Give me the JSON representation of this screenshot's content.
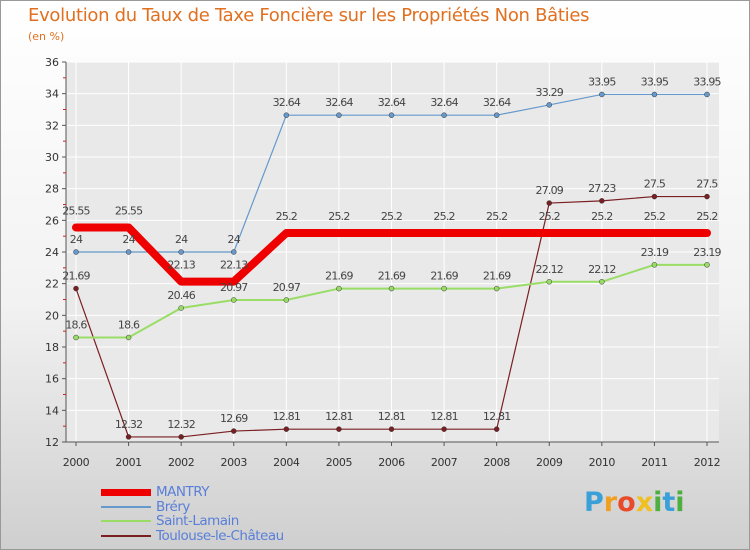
{
  "title": "Evolution du Taux de Taxe Foncière sur les Propriétés Non Bâties",
  "unit": "(en %)",
  "logo": {
    "text": "Proxiti",
    "letters": [
      "P",
      "r",
      "o",
      "x",
      "i",
      "t",
      "i"
    ]
  },
  "colors": {
    "axis": "#555555",
    "tick_text": "#333333",
    "grid": "#ffffff",
    "minor_tick": "#cc2222"
  },
  "chart_data": {
    "type": "line",
    "title": "Evolution du Taux de Taxe Foncière sur les Propriétés Non Bâties",
    "ylabel": "(en %)",
    "xlabel": "",
    "x": [
      "2000",
      "2001",
      "2002",
      "2003",
      "2004",
      "2005",
      "2006",
      "2007",
      "2008",
      "2009",
      "2010",
      "2011",
      "2012"
    ],
    "ylim": [
      12,
      36
    ],
    "yticks": [
      12,
      14,
      16,
      18,
      20,
      22,
      24,
      26,
      28,
      30,
      32,
      34,
      36
    ],
    "grid": true,
    "legend_position": "bottom-left",
    "series": [
      {
        "name": "Toulouse-le-Château",
        "color": "#7a1f22",
        "width": 1.2,
        "marker": 4,
        "values": [
          21.69,
          12.32,
          12.32,
          12.69,
          12.81,
          12.81,
          12.81,
          12.81,
          12.81,
          27.09,
          27.23,
          27.5,
          27.5
        ],
        "labels": [
          "21.69",
          "12.32",
          "12.32",
          "12.69",
          "12.81",
          "12.81",
          "12.81",
          "12.81",
          "12.81",
          "27.09",
          "27.23",
          "27.5",
          "27.5"
        ]
      },
      {
        "name": "Saint-Lamain",
        "color": "#99dd66",
        "width": 2,
        "marker": 4,
        "values": [
          18.6,
          18.6,
          20.46,
          20.97,
          20.97,
          21.69,
          21.69,
          21.69,
          21.69,
          22.12,
          22.12,
          23.19,
          23.19
        ],
        "labels": [
          "18.6",
          "18.6",
          "20.46",
          "20.97",
          "20.97",
          "21.69",
          "21.69",
          "21.69",
          "21.69",
          "22.12",
          "22.12",
          "23.19",
          "23.19"
        ]
      },
      {
        "name": "Bréry",
        "color": "#6699cc",
        "width": 1.2,
        "marker": 4,
        "values": [
          24,
          24,
          24,
          24,
          32.64,
          32.64,
          32.64,
          32.64,
          32.64,
          33.29,
          33.95,
          33.95,
          33.95
        ],
        "labels": [
          "24",
          "24",
          "24",
          "24",
          "32.64",
          "32.64",
          "32.64",
          "32.64",
          "32.64",
          "33.29",
          "33.95",
          "33.95",
          "33.95"
        ]
      },
      {
        "name": "MANTRY",
        "color": "#ee0000",
        "width": 8,
        "marker": 7,
        "values": [
          25.55,
          25.55,
          22.13,
          22.13,
          25.2,
          25.2,
          25.2,
          25.2,
          25.2,
          25.2,
          25.2,
          25.2,
          25.2
        ],
        "labels": [
          "25.55",
          "25.55",
          "22.13",
          "22.13",
          "25.2",
          "25.2",
          "25.2",
          "25.2",
          "25.2",
          "25.2",
          "25.2",
          "25.2",
          "25.2"
        ]
      }
    ],
    "legend": [
      {
        "name": "MANTRY",
        "color": "#ee0000"
      },
      {
        "name": "Bréry",
        "color": "#6699cc"
      },
      {
        "name": "Saint-Lamain",
        "color": "#99dd66"
      },
      {
        "name": "Toulouse-le-Château",
        "color": "#7a1f22"
      }
    ]
  }
}
